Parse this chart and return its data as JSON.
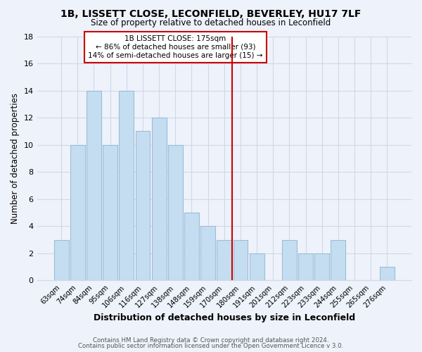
{
  "title": "1B, LISSETT CLOSE, LECONFIELD, BEVERLEY, HU17 7LF",
  "subtitle": "Size of property relative to detached houses in Leconfield",
  "xlabel": "Distribution of detached houses by size in Leconfield",
  "ylabel": "Number of detached properties",
  "bar_color": "#c5ddf0",
  "bar_edge_color": "#9bbdd8",
  "grid_color": "#d0d8e8",
  "background_color": "#eef2fa",
  "annotation_box_color": "#ffffff",
  "annotation_box_edge": "#cc0000",
  "marker_line_color": "#cc0000",
  "categories": [
    "63sqm",
    "74sqm",
    "84sqm",
    "95sqm",
    "106sqm",
    "116sqm",
    "127sqm",
    "138sqm",
    "148sqm",
    "159sqm",
    "170sqm",
    "180sqm",
    "191sqm",
    "201sqm",
    "212sqm",
    "223sqm",
    "233sqm",
    "244sqm",
    "255sqm",
    "265sqm",
    "276sqm"
  ],
  "values": [
    3,
    10,
    14,
    10,
    14,
    11,
    12,
    10,
    5,
    4,
    3,
    3,
    2,
    0,
    3,
    2,
    2,
    3,
    0,
    0,
    1
  ],
  "annotation_title": "1B LISSETT CLOSE: 175sqm",
  "annotation_line1": "← 86% of detached houses are smaller (93)",
  "annotation_line2": "14% of semi-detached houses are larger (15) →",
  "ylim": [
    0,
    18
  ],
  "yticks": [
    0,
    2,
    4,
    6,
    8,
    10,
    12,
    14,
    16,
    18
  ],
  "footer1": "Contains HM Land Registry data © Crown copyright and database right 2024.",
  "footer2": "Contains public sector information licensed under the Open Government Licence v 3.0."
}
